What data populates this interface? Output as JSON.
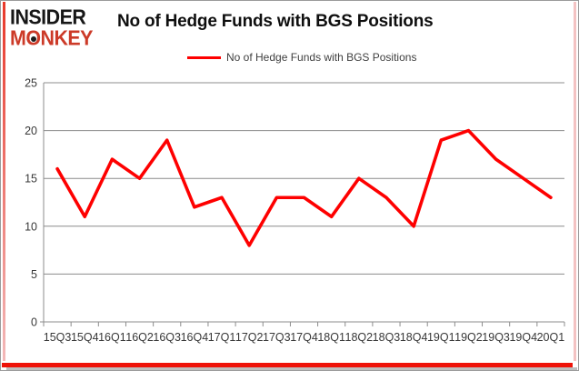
{
  "logo": {
    "line1": "INSIDER",
    "line2": "MONKEY"
  },
  "title": "No of Hedge Funds with BGS Positions",
  "legend": {
    "label": "No of Hedge Funds with BGS Positions",
    "color": "#fe0000"
  },
  "chart_data": {
    "type": "line",
    "title": "No of Hedge Funds with BGS Positions",
    "categories": [
      "15Q3",
      "15Q4",
      "16Q1",
      "16Q2",
      "16Q3",
      "16Q4",
      "17Q1",
      "17Q2",
      "17Q3",
      "17Q4",
      "18Q1",
      "18Q2",
      "18Q3",
      "18Q4",
      "19Q1",
      "19Q2",
      "19Q3",
      "19Q4",
      "20Q1"
    ],
    "series": [
      {
        "name": "No of Hedge Funds with BGS Positions",
        "color": "#fe0000",
        "values": [
          16,
          11,
          17,
          15,
          19,
          12,
          13,
          8,
          13,
          13,
          11,
          15,
          13,
          10,
          19,
          20,
          17,
          15,
          13
        ]
      }
    ],
    "xlabel": "",
    "ylabel": "",
    "ylim": [
      0,
      25
    ],
    "yticks": [
      0,
      5,
      10,
      15,
      20,
      25
    ],
    "grid": true,
    "legend_position": "top"
  },
  "colors": {
    "line": "#fe0000",
    "grid": "#8c8c8c",
    "axis": "#8c8c8c",
    "tick_label": "#383838",
    "bottom_bar": "#ee1208"
  }
}
